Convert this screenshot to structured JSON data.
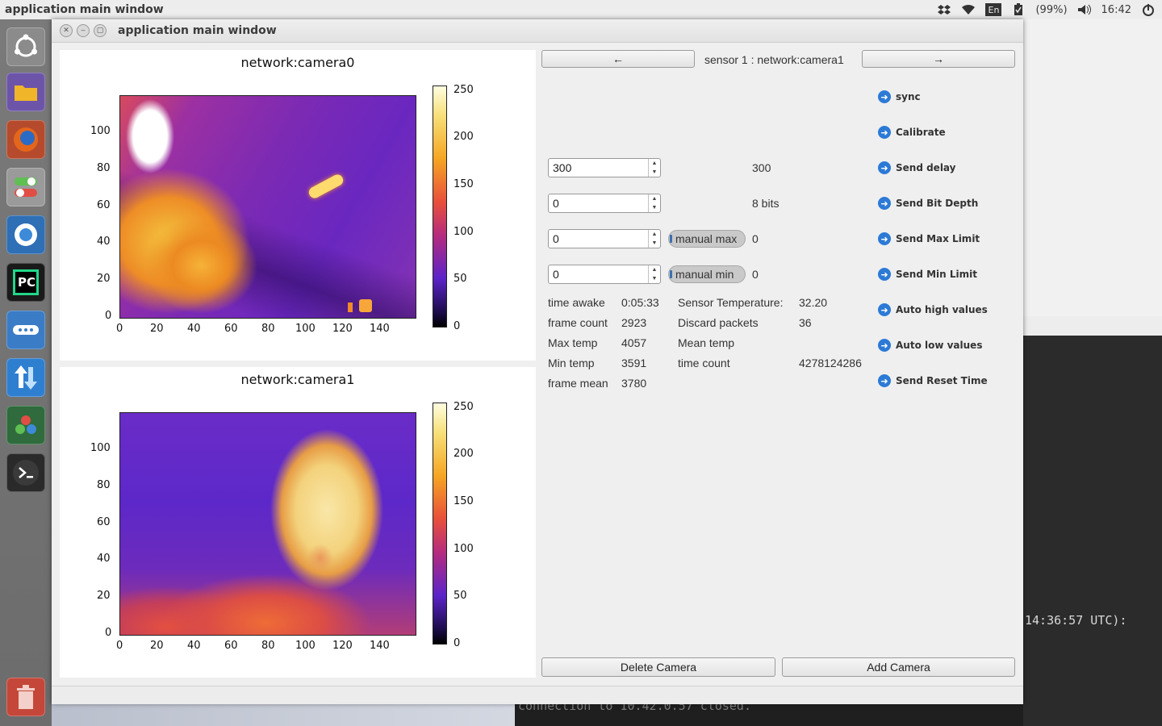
{
  "topbar": {
    "app_title": "application main window",
    "keyboard": "En",
    "battery": "(99%)",
    "time": "16:42",
    "icons": [
      "dropbox-icon",
      "wifi-icon",
      "keyboard-icon",
      "battery-icon",
      "volume-icon"
    ]
  },
  "launcher": {
    "items": [
      "ubuntu-dash",
      "files",
      "firefox",
      "system-settings",
      "chromium",
      "pycharm",
      "remmina",
      "update-manager",
      "unity-tweak",
      "terminal",
      "trash"
    ]
  },
  "window": {
    "title": "application main window",
    "controls": [
      "close",
      "minimize",
      "maximize"
    ]
  },
  "plots": [
    {
      "title": "network:camera0",
      "xticks": [
        "0",
        "20",
        "40",
        "60",
        "80",
        "100",
        "120",
        "140"
      ],
      "yticks": [
        "100",
        "80",
        "60",
        "40",
        "20",
        "0"
      ],
      "cbar_ticks": [
        "250",
        "200",
        "150",
        "100",
        "50",
        "0"
      ]
    },
    {
      "title": "network:camera1",
      "xticks": [
        "0",
        "20",
        "40",
        "60",
        "80",
        "100",
        "120",
        "140"
      ],
      "yticks": [
        "100",
        "80",
        "60",
        "40",
        "20",
        "0"
      ],
      "cbar_ticks": [
        "250",
        "200",
        "150",
        "100",
        "50",
        "0"
      ]
    }
  ],
  "nav": {
    "prev": "←",
    "next": "→",
    "sensor_label": "sensor 1 : network:camera1"
  },
  "controls": {
    "delay": {
      "input": "300",
      "value": "300"
    },
    "bitdepth": {
      "input": "0",
      "value": "8 bits"
    },
    "maxlimit": {
      "input": "0",
      "toggle": "manual max",
      "value": "0"
    },
    "minlimit": {
      "input": "0",
      "toggle": "manual min",
      "value": "0"
    }
  },
  "stats": {
    "time_awake_label": "time awake",
    "time_awake": "0:05:33",
    "frame_count_label": "frame count",
    "frame_count": "2923",
    "max_temp_label": "Max temp",
    "max_temp": "4057",
    "min_temp_label": "Min temp",
    "min_temp": "3591",
    "frame_mean_label": "frame mean",
    "frame_mean": "3780",
    "sensor_temp_label": "Sensor Temperature:",
    "sensor_temp": "32.20",
    "discard_label": "Discard packets",
    "discard": "36",
    "mean_temp_label": "Mean temp",
    "time_count_label": "time count",
    "time_count": "4278124286"
  },
  "commands": [
    "sync",
    "Calibrate",
    "Send delay",
    "Send Bit Depth",
    "Send Max Limit",
    "Send Min Limit",
    "Auto high values",
    "Auto low values",
    "Send Reset Time"
  ],
  "bottom_buttons": {
    "delete": "Delete Camera",
    "add": "Add Camera"
  },
  "terminal": {
    "text": "14:36:57 UTC):",
    "bottom_ghost": "connection to 10.42.0.57 closed."
  }
}
